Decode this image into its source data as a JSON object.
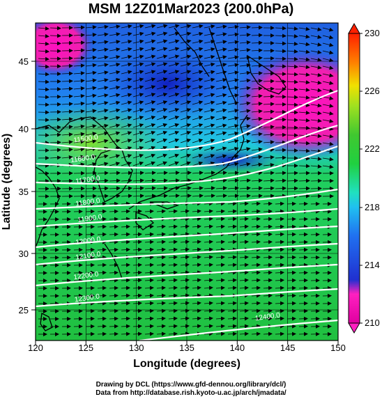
{
  "title": "MSM 12Z01Mar2023 (200.0hPa)",
  "axes": {
    "xlabel": "Longitude (degrees)",
    "ylabel": "Latitude  (degrees)",
    "x_ticks": [
      "120",
      "125",
      "130",
      "135",
      "140",
      "145",
      "150"
    ],
    "y_ticks": [
      "45",
      "40",
      "35",
      "30",
      "25"
    ]
  },
  "colorbar": {
    "ticks": [
      "230",
      "226",
      "222",
      "218",
      "214",
      "210"
    ],
    "colors": [
      "#e00090",
      "#ff10c0",
      "#3040e0",
      "#20b0e8",
      "#20e0c0",
      "#20d040",
      "#40c830",
      "#a0e020",
      "#f0e000",
      "#ff8000",
      "#ff2000"
    ]
  },
  "chart_data": {
    "type": "heatmap",
    "title": "MSM 12Z01Mar2023 (200.0hPa)",
    "xlabel": "Longitude (degrees)",
    "ylabel": "Latitude  (degrees)",
    "xlim": [
      120,
      150
    ],
    "ylim": [
      22.5,
      48
    ],
    "color_range": [
      210,
      230
    ],
    "contours": [
      {
        "label": "11500.0",
        "lon": 123.8,
        "lat": 38.4
      },
      {
        "label": "11600.0",
        "lon": 123.5,
        "lat": 36.8
      },
      {
        "label": "11700.0",
        "lon": 124.0,
        "lat": 35.1
      },
      {
        "label": "11800.0",
        "lon": 124.0,
        "lat": 33.3
      },
      {
        "label": "11900.0",
        "lon": 124.2,
        "lat": 32.0
      },
      {
        "label": "12000.0",
        "lon": 124.0,
        "lat": 30.2
      },
      {
        "label": "12100.0",
        "lon": 124.0,
        "lat": 29.0
      },
      {
        "label": "12200.0",
        "lon": 123.8,
        "lat": 27.4
      },
      {
        "label": "12300.0",
        "lon": 123.9,
        "lat": 25.6
      },
      {
        "label": "12400.0",
        "lon": 141.8,
        "lat": 24.1
      }
    ]
  },
  "footer": {
    "line1": "Drawing by DCL (https://www.gfd-dennou.org/library/dcl/)",
    "line2": "Data from http://database.rish.kyoto-u.ac.jp/arch/jmadata/"
  }
}
